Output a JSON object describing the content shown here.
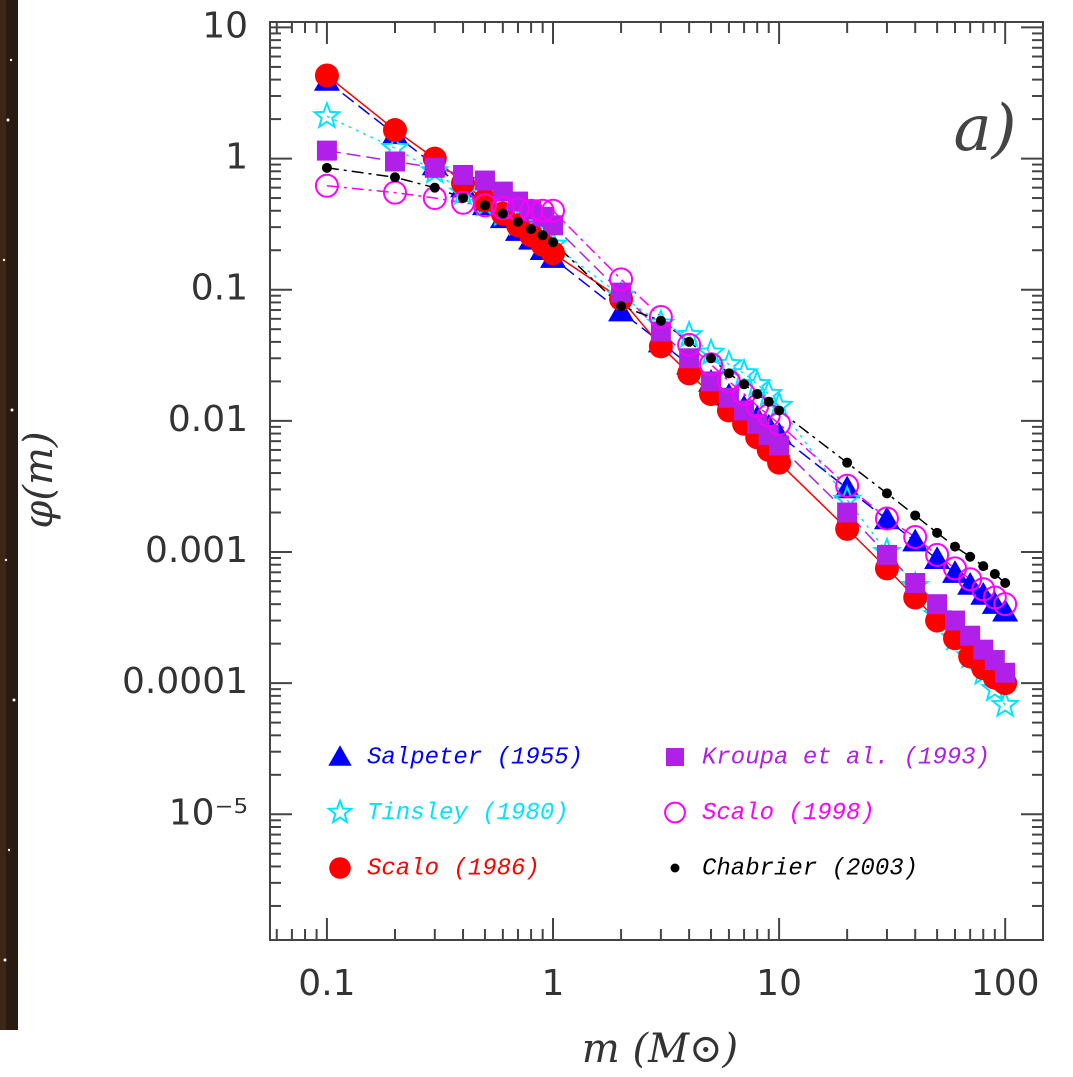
{
  "chart_data": {
    "type": "line",
    "title_annotation": "a)",
    "x_label": "m  (M⊙)",
    "y_label": "φ(m)",
    "xscale": "log",
    "yscale": "log",
    "xlim": [
      0.056,
      147
    ],
    "ylim": [
      1.1e-06,
      11
    ],
    "xticks": [
      0.1,
      1,
      10,
      100
    ],
    "yticks": [
      {
        "value": 1e-05,
        "label": "10⁻⁵"
      },
      0.0001,
      0.001,
      0.01,
      0.1,
      1,
      10
    ],
    "minor_ticks": true,
    "legend": "lower left",
    "x": [
      0.1,
      0.2,
      0.3,
      0.4,
      0.5,
      0.6,
      0.7,
      0.8,
      0.9,
      1,
      2,
      3,
      4,
      5,
      6,
      7,
      8,
      9,
      10,
      20,
      30,
      40,
      50,
      60,
      70,
      80,
      90,
      100
    ],
    "series": [
      {
        "name": "Salpeter (1955)",
        "color": "#0000ff",
        "marker": "triangle",
        "line": "dashed",
        "values": [
          3.9,
          1.53,
          0.885,
          0.6,
          0.44,
          0.35,
          0.28,
          0.24,
          0.2,
          0.174,
          0.068,
          0.0395,
          0.0268,
          0.0198,
          0.0155,
          0.0126,
          0.0105,
          0.009,
          0.0078,
          0.00305,
          0.00177,
          0.0012,
          0.00088,
          0.00069,
          0.00056,
          0.00047,
          0.0004,
          0.00035
        ]
      },
      {
        "name": "Tinsley (1980)",
        "color": "#00e5ff",
        "marker": "star",
        "line": "dotted",
        "values": [
          2.1,
          1.2,
          0.8,
          0.55,
          0.45,
          0.38,
          0.32,
          0.28,
          0.25,
          0.22,
          0.09,
          0.055,
          0.045,
          0.033,
          0.027,
          0.023,
          0.019,
          0.016,
          0.013,
          0.0025,
          0.001,
          0.00055,
          0.00033,
          0.00022,
          0.00016,
          0.00012,
          9e-05,
          6.8e-05
        ]
      },
      {
        "name": "Scalo (1986)",
        "color": "#ff0000",
        "marker": "circle",
        "line": "solid",
        "values": [
          4.3,
          1.65,
          1.0,
          0.65,
          0.48,
          0.38,
          0.31,
          0.26,
          0.22,
          0.19,
          0.085,
          0.037,
          0.023,
          0.016,
          0.012,
          0.0095,
          0.0075,
          0.006,
          0.0048,
          0.0015,
          0.00075,
          0.00045,
          0.0003,
          0.00022,
          0.00016,
          0.00013,
          0.00011,
          0.0001
        ]
      },
      {
        "name": "Kroupa et al. (1993)",
        "color": "#b020e8",
        "marker": "square",
        "line": "dashed",
        "values": [
          1.15,
          0.95,
          0.85,
          0.75,
          0.68,
          0.56,
          0.47,
          0.41,
          0.36,
          0.31,
          0.095,
          0.048,
          0.03,
          0.02,
          0.015,
          0.012,
          0.0095,
          0.0078,
          0.0065,
          0.002,
          0.00095,
          0.00058,
          0.0004,
          0.0003,
          0.00023,
          0.00018,
          0.00015,
          0.00012
        ]
      },
      {
        "name": "Scalo (1998)",
        "color": "#ff00ff",
        "marker": "open-circle",
        "line": "dashdot",
        "values": [
          0.62,
          0.55,
          0.5,
          0.46,
          0.44,
          0.42,
          0.41,
          0.4,
          0.4,
          0.4,
          0.12,
          0.062,
          0.038,
          0.027,
          0.02,
          0.016,
          0.013,
          0.011,
          0.0095,
          0.0032,
          0.0018,
          0.0013,
          0.00095,
          0.00075,
          0.00062,
          0.00052,
          0.00045,
          0.0004
        ]
      },
      {
        "name": "Chabrier (2003)",
        "color": "#000000",
        "marker": "dot",
        "line": "dashdot",
        "values": [
          0.85,
          0.72,
          0.6,
          0.5,
          0.44,
          0.38,
          0.33,
          0.29,
          0.26,
          0.23,
          0.075,
          0.058,
          0.04,
          0.03,
          0.023,
          0.019,
          0.016,
          0.014,
          0.012,
          0.0048,
          0.0028,
          0.0019,
          0.0014,
          0.0011,
          0.00092,
          0.00078,
          0.00068,
          0.00058
        ]
      }
    ]
  }
}
